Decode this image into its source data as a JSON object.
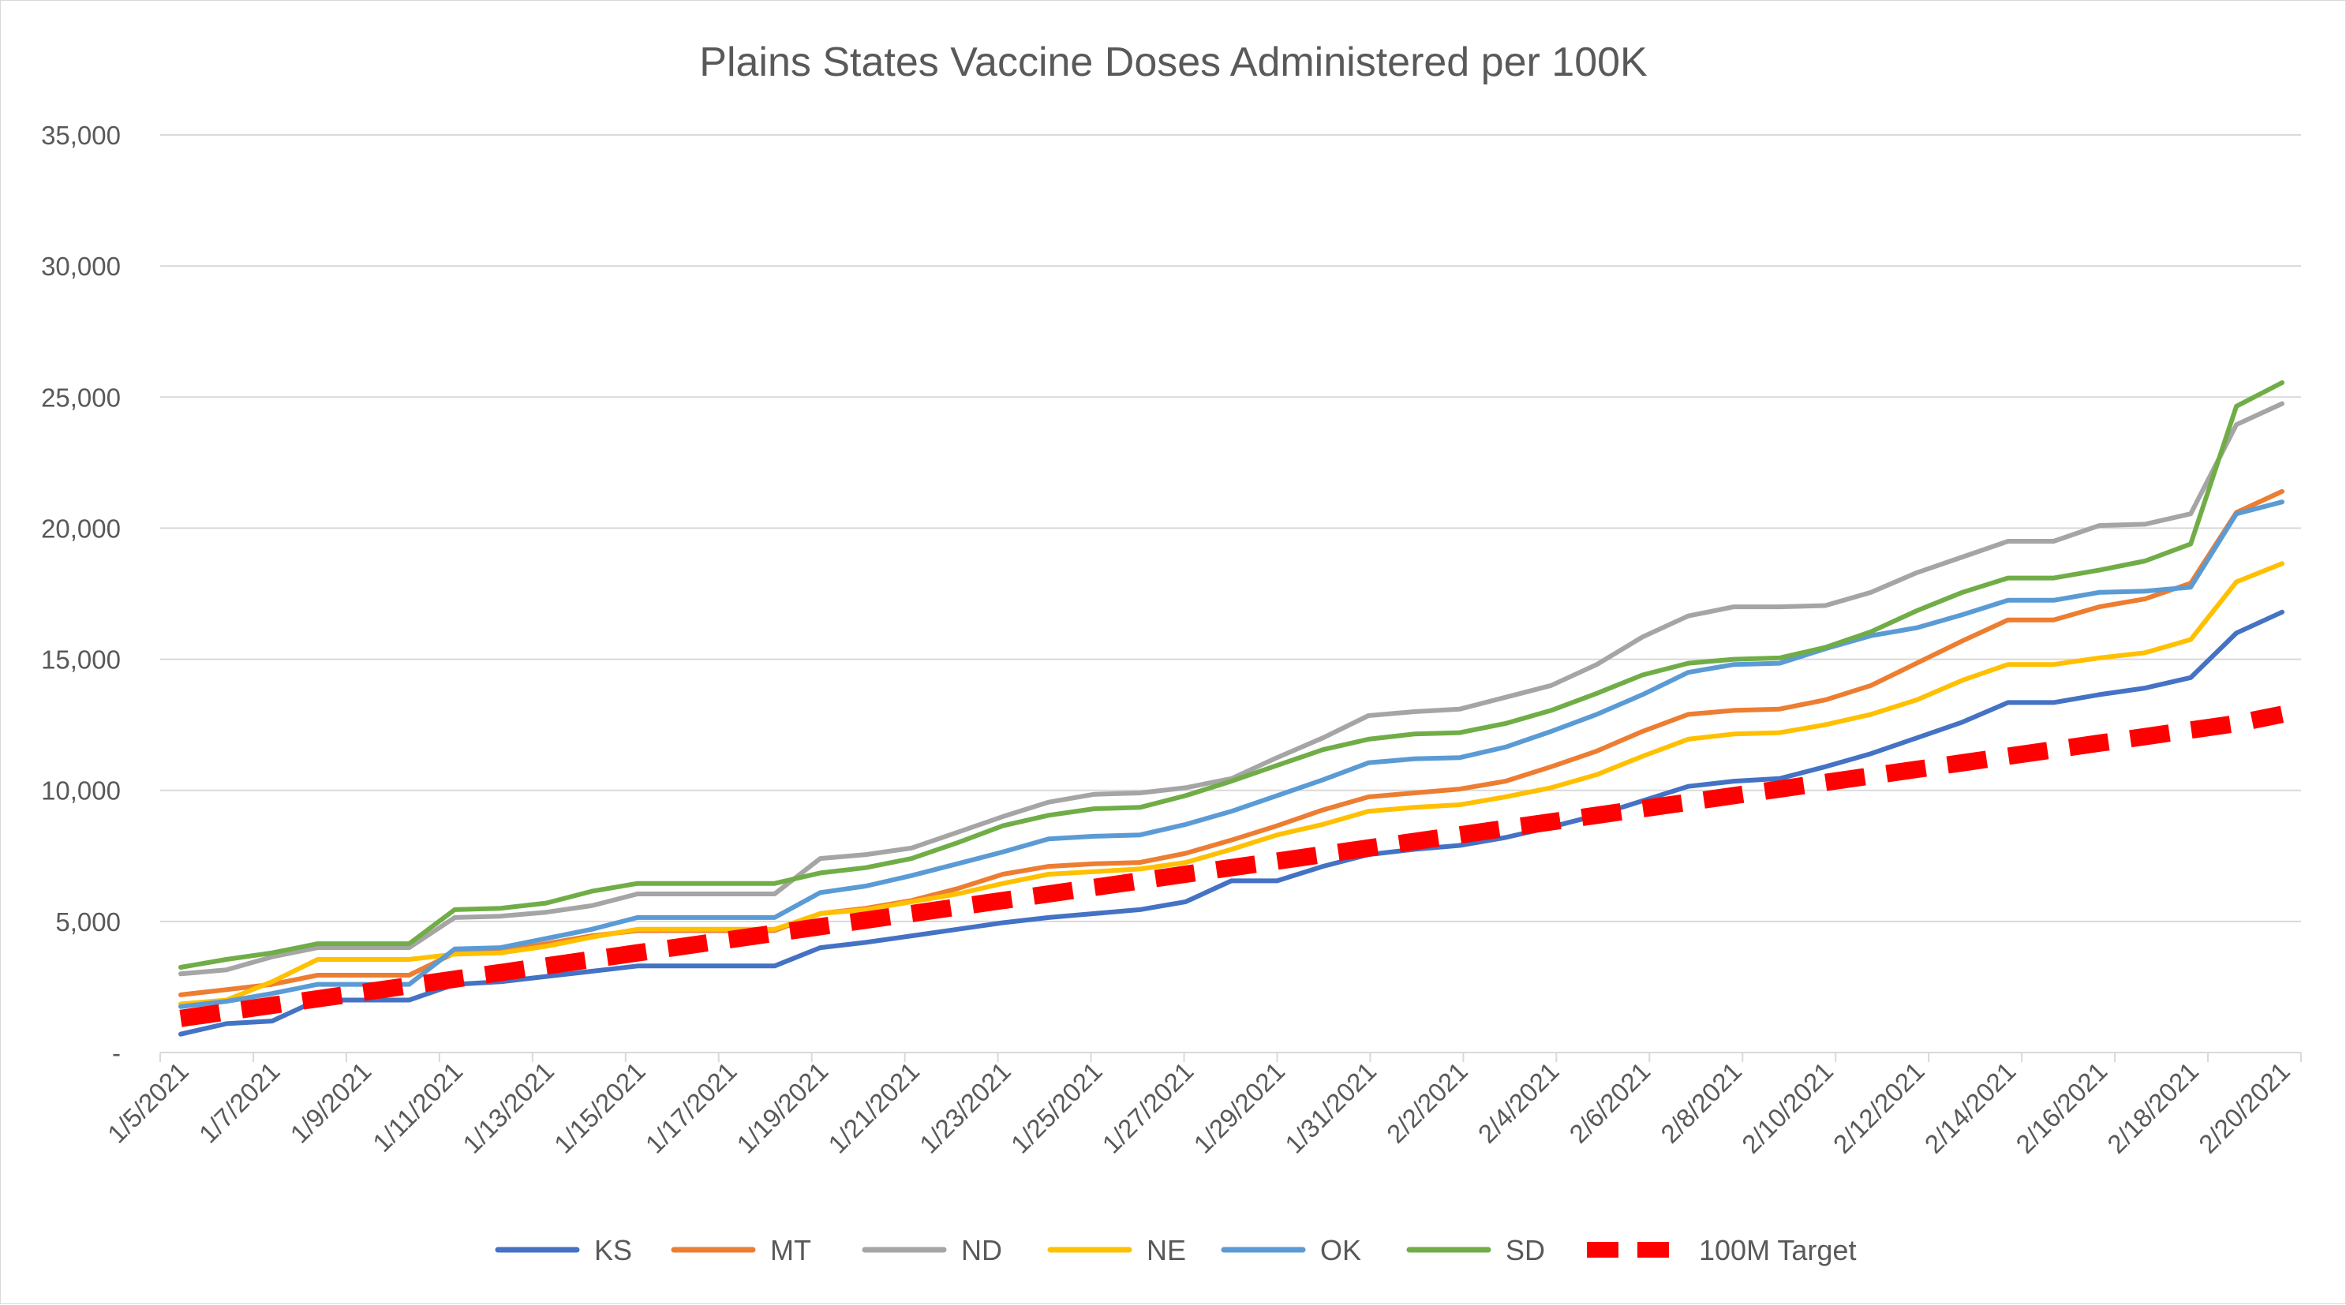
{
  "chart_data": {
    "type": "line",
    "title": "Plains States Vaccine Doses Administered per 100K",
    "xlabel": "",
    "ylabel": "",
    "ylim": [
      0,
      35000
    ],
    "y_ticks": [
      "-",
      "5,000",
      "10,000",
      "15,000",
      "20,000",
      "25,000",
      "30,000",
      "35,000"
    ],
    "y_tick_values": [
      0,
      5000,
      10000,
      15000,
      20000,
      25000,
      30000,
      35000
    ],
    "x_tick_labels": [
      "1/5/2021",
      "1/7/2021",
      "1/9/2021",
      "1/11/2021",
      "1/13/2021",
      "1/15/2021",
      "1/17/2021",
      "1/19/2021",
      "1/21/2021",
      "1/23/2021",
      "1/25/2021",
      "1/27/2021",
      "1/29/2021",
      "1/31/2021",
      "2/2/2021",
      "2/4/2021",
      "2/6/2021",
      "2/8/2021",
      "2/10/2021",
      "2/12/2021",
      "2/14/2021",
      "2/16/2021",
      "2/18/2021",
      "2/20/2021"
    ],
    "x": [
      "1/5/2021",
      "1/6/2021",
      "1/7/2021",
      "1/8/2021",
      "1/9/2021",
      "1/10/2021",
      "1/11/2021",
      "1/12/2021",
      "1/13/2021",
      "1/14/2021",
      "1/15/2021",
      "1/16/2021",
      "1/17/2021",
      "1/18/2021",
      "1/19/2021",
      "1/20/2021",
      "1/21/2021",
      "1/22/2021",
      "1/23/2021",
      "1/24/2021",
      "1/25/2021",
      "1/26/2021",
      "1/27/2021",
      "1/28/2021",
      "1/29/2021",
      "1/30/2021",
      "1/31/2021",
      "2/1/2021",
      "2/2/2021",
      "2/3/2021",
      "2/4/2021",
      "2/5/2021",
      "2/6/2021",
      "2/7/2021",
      "2/8/2021",
      "2/9/2021",
      "2/10/2021",
      "2/11/2021",
      "2/12/2021",
      "2/13/2021",
      "2/14/2021",
      "2/15/2021",
      "2/16/2021",
      "2/17/2021",
      "2/18/2021",
      "2/19/2021",
      "2/20/2021"
    ],
    "grid": true,
    "legend_position": "bottom",
    "series": [
      {
        "name": "KS",
        "color": "#4472c4",
        "dashed": false,
        "values": [
          700,
          1100,
          1200,
          2000,
          2000,
          2000,
          2600,
          2700,
          2900,
          3100,
          3300,
          3300,
          3300,
          3300,
          4000,
          4200,
          4450,
          4700,
          4950,
          5150,
          5300,
          5450,
          5750,
          6550,
          6550,
          7100,
          7550,
          7750,
          7900,
          8200,
          8600,
          9050,
          9600,
          10150,
          10350,
          10450,
          10900,
          11400,
          12000,
          12600,
          13350,
          13350,
          13650,
          13900,
          14300,
          16000,
          16800
        ]
      },
      {
        "name": "MT",
        "color": "#ed7d31",
        "dashed": false,
        "values": [
          2200,
          2400,
          2600,
          2950,
          2950,
          2950,
          3800,
          3850,
          4150,
          4450,
          4650,
          4650,
          4650,
          4650,
          5300,
          5500,
          5800,
          6250,
          6800,
          7100,
          7200,
          7250,
          7600,
          8100,
          8650,
          9250,
          9750,
          9900,
          10050,
          10350,
          10900,
          11500,
          12250,
          12900,
          13050,
          13100,
          13450,
          14000,
          14850,
          15700,
          16500,
          16500,
          17000,
          17300,
          17900,
          20600,
          21400
        ]
      },
      {
        "name": "ND",
        "color": "#a5a5a5",
        "dashed": false,
        "values": [
          3000,
          3150,
          3650,
          4000,
          4000,
          4000,
          5150,
          5200,
          5350,
          5600,
          6050,
          6050,
          6050,
          6050,
          7400,
          7550,
          7800,
          8400,
          9000,
          9550,
          9850,
          9900,
          10100,
          10450,
          11250,
          12000,
          12850,
          13000,
          13100,
          13550,
          14000,
          14800,
          15850,
          16650,
          17000,
          17000,
          17050,
          17550,
          18300,
          18900,
          19500,
          19500,
          20100,
          20150,
          20550,
          23950,
          24750
        ]
      },
      {
        "name": "NE",
        "color": "#ffc000",
        "dashed": false,
        "values": [
          1850,
          2000,
          2700,
          3550,
          3550,
          3550,
          3750,
          3800,
          4050,
          4400,
          4700,
          4700,
          4700,
          4700,
          5300,
          5450,
          5750,
          6050,
          6450,
          6800,
          6900,
          7000,
          7250,
          7750,
          8300,
          8700,
          9200,
          9350,
          9450,
          9750,
          10100,
          10600,
          11300,
          11950,
          12150,
          12200,
          12500,
          12900,
          13450,
          14200,
          14800,
          14800,
          15050,
          15250,
          15750,
          17950,
          18650
        ]
      },
      {
        "name": "OK",
        "color": "#5b9bd5",
        "dashed": false,
        "values": [
          1750,
          1950,
          2250,
          2600,
          2600,
          2600,
          3950,
          4000,
          4350,
          4700,
          5150,
          5150,
          5150,
          5150,
          6100,
          6350,
          6750,
          7200,
          7650,
          8150,
          8250,
          8300,
          8700,
          9200,
          9800,
          10400,
          11050,
          11200,
          11250,
          11650,
          12250,
          12900,
          13650,
          14500,
          14800,
          14850,
          15400,
          15900,
          16200,
          16700,
          17250,
          17250,
          17550,
          17600,
          17750,
          20550,
          21000
        ]
      },
      {
        "name": "SD",
        "color": "#70ad47",
        "dashed": false,
        "values": [
          3250,
          3550,
          3800,
          4150,
          4150,
          4150,
          5450,
          5500,
          5700,
          6150,
          6450,
          6450,
          6450,
          6450,
          6850,
          7050,
          7400,
          8000,
          8650,
          9050,
          9300,
          9350,
          9800,
          10350,
          10950,
          11550,
          11950,
          12150,
          12200,
          12550,
          13050,
          13700,
          14400,
          14850,
          15000,
          15050,
          15450,
          16050,
          16850,
          17550,
          18100,
          18100,
          18400,
          18750,
          19400,
          24650,
          25550
        ]
      },
      {
        "name": "100M Target",
        "color": "#ff0000",
        "dashed": true,
        "values": [
          1300,
          1550,
          1800,
          2050,
          2300,
          2550,
          2800,
          3050,
          3300,
          3550,
          3800,
          4050,
          4300,
          4550,
          4800,
          5050,
          5300,
          5550,
          5800,
          6050,
          6300,
          6550,
          6800,
          7050,
          7300,
          7550,
          7800,
          8050,
          8300,
          8550,
          8800,
          9050,
          9300,
          9550,
          9800,
          10050,
          10300,
          10550,
          10800,
          11050,
          11300,
          11550,
          11800,
          12050,
          12300,
          12550,
          12900
        ]
      }
    ]
  }
}
